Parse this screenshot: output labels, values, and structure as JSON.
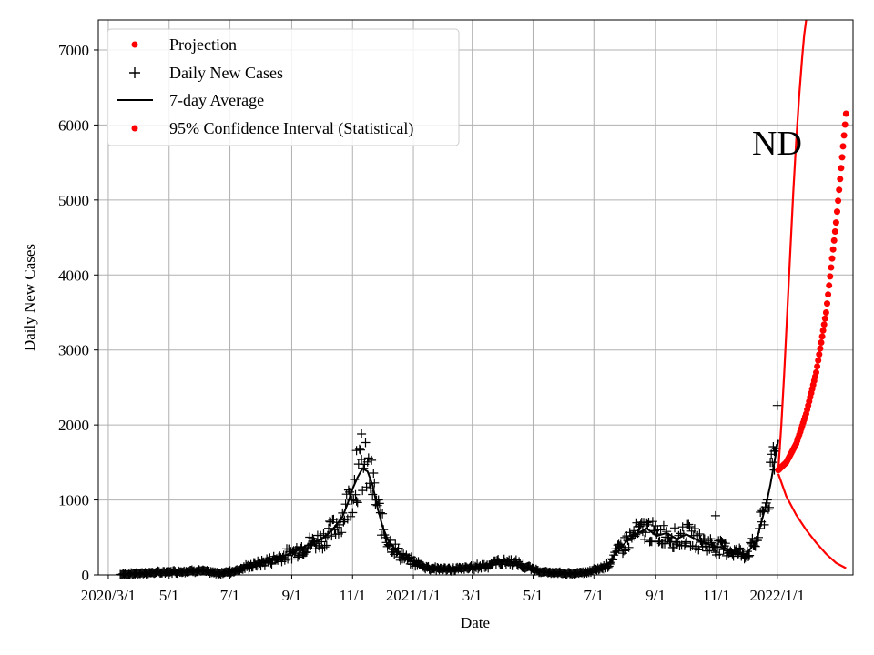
{
  "chart_data": {
    "type": "line",
    "state_label": "ND",
    "xlabel": "Date",
    "ylabel": "Daily New Cases",
    "grid": true,
    "legend_position": "top-left",
    "x_tick_labels": [
      "2020/3/1",
      "5/1",
      "7/1",
      "9/1",
      "11/1",
      "2021/1/1",
      "3/1",
      "5/1",
      "7/1",
      "9/1",
      "11/1",
      "2022/1/1"
    ],
    "y_tick_labels": [
      "0",
      "1000",
      "2000",
      "3000",
      "4000",
      "5000",
      "6000",
      "7000"
    ],
    "ylim": [
      0,
      7400
    ],
    "x_units": "days since 2020-03-01",
    "xlim": [
      -10,
      747
    ],
    "x_ticks_days": [
      0,
      61,
      122,
      184,
      245,
      306,
      365,
      426,
      487,
      549,
      610,
      671
    ],
    "legend": [
      {
        "label": "Projection",
        "marker": "dot",
        "color": "#ff0000"
      },
      {
        "label": "Daily New Cases",
        "marker": "plus",
        "color": "#000000"
      },
      {
        "label": "7-day Average",
        "marker": "line",
        "color": "#000000"
      },
      {
        "label": "95% Confidence Interval (Statistical)",
        "marker": "dot",
        "color": "#ff0000"
      }
    ],
    "seven_day_average": {
      "x": [
        12,
        30,
        60,
        90,
        110,
        125,
        140,
        160,
        175,
        185,
        200,
        215,
        225,
        235,
        240,
        245,
        250,
        255,
        260,
        265,
        270,
        275,
        280,
        290,
        300,
        310,
        320,
        340,
        360,
        380,
        390,
        400,
        410,
        420,
        430,
        440,
        460,
        480,
        500,
        510,
        520,
        530,
        540,
        550,
        560,
        570,
        580,
        590,
        600,
        610,
        620,
        630,
        640,
        650,
        655,
        660,
        664,
        668,
        672
      ],
      "y": [
        5,
        20,
        40,
        60,
        20,
        50,
        110,
        180,
        250,
        300,
        400,
        480,
        600,
        780,
        950,
        1150,
        1300,
        1420,
        1380,
        1200,
        900,
        650,
        480,
        300,
        200,
        150,
        100,
        70,
        90,
        130,
        170,
        180,
        150,
        100,
        60,
        30,
        20,
        30,
        120,
        300,
        450,
        550,
        620,
        520,
        560,
        480,
        540,
        470,
        420,
        380,
        350,
        300,
        280,
        450,
        700,
        950,
        1200,
        1500,
        1800
      ],
      "color": "#000000"
    },
    "daily_new_cases_scatter": {
      "description": "Noisy daily counts scattered around the 7-day average",
      "notable_points": [
        {
          "x": 254,
          "y": 1880
        },
        {
          "x": 249,
          "y": 1660
        },
        {
          "x": 671,
          "y": 2260
        },
        {
          "x": 668,
          "y": 1650
        },
        {
          "x": 609,
          "y": 790
        }
      ],
      "marker": "+",
      "color": "#000000"
    },
    "projection": {
      "x": [
        672,
        680,
        690,
        700,
        710,
        720,
        730,
        740
      ],
      "y": [
        1400,
        1500,
        1750,
        2150,
        2700,
        3500,
        4700,
        6150
      ],
      "marker": "dot",
      "color": "#ff0000"
    },
    "confidence_interval_upper": {
      "x": [
        672,
        675,
        678,
        681,
        684,
        687,
        690,
        693,
        696,
        698,
        700
      ],
      "y": [
        1400,
        2000,
        2700,
        3500,
        4300,
        5100,
        5800,
        6400,
        6900,
        7200,
        7400
      ],
      "color": "#ff0000"
    },
    "confidence_interval_lower": {
      "x": [
        672,
        680,
        690,
        700,
        710,
        720,
        730,
        740
      ],
      "y": [
        1350,
        1050,
        800,
        600,
        430,
        280,
        160,
        90
      ],
      "color": "#ff0000"
    }
  }
}
